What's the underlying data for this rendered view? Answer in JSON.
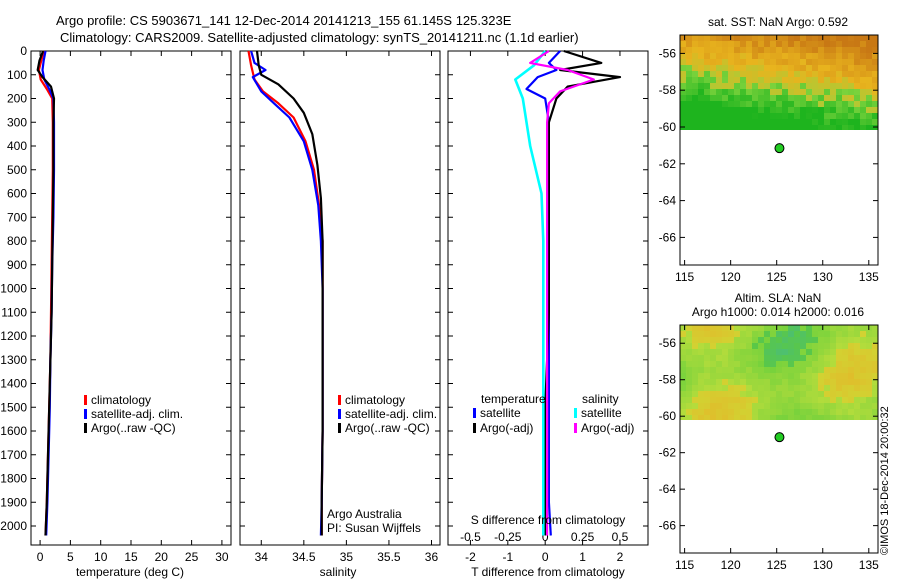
{
  "header": {
    "line1": "Argo profile: CS 5903671_141 12-Dec-2014 20141213_155 61.145S 125.323E",
    "line2": "Climatology: CARS2009. Satellite-adjusted climatology: synTS_20141211.nc (1.1d earlier)"
  },
  "colors": {
    "climatology": "#ff0000",
    "satellite": "#0000ff",
    "argo": "#000000",
    "sat_salinity": "#00ffff",
    "argo_salinity": "#ff00ff",
    "float_marker": "#22cc22"
  },
  "chart_data": [
    {
      "type": "line",
      "id": "temperature",
      "xlabel": "temperature (deg C)",
      "ylabel": "",
      "xlim": [
        -1.5,
        31.5
      ],
      "ylim": [
        2080,
        0
      ],
      "xticks": [
        0,
        5,
        10,
        15,
        20,
        25,
        30
      ],
      "xtick_labels": [
        "0",
        "5",
        "10",
        "15",
        "20",
        "25",
        "30"
      ],
      "yticks": [
        0,
        100,
        200,
        300,
        400,
        500,
        600,
        700,
        800,
        900,
        1000,
        1100,
        1200,
        1300,
        1400,
        1500,
        1600,
        1700,
        1800,
        1900,
        2000
      ],
      "ytick_labels": [
        "0",
        "100",
        "200",
        "300",
        "400",
        "500",
        "600",
        "700",
        "800",
        "900",
        "1000",
        "1100",
        "1200",
        "1300",
        "1400",
        "1500",
        "1600",
        "1700",
        "1800",
        "1900",
        "2000"
      ],
      "legend": [
        "climatology",
        "satellite-adj. clim.",
        "Argo(..raw -QC)"
      ],
      "series": [
        {
          "name": "climatology",
          "color_key": "climatology",
          "points": [
            [
              0.6,
              0
            ],
            [
              0.2,
              40
            ],
            [
              -0.2,
              80
            ],
            [
              0.1,
              120
            ],
            [
              1.1,
              160
            ],
            [
              2.0,
              200
            ],
            [
              2.1,
              300
            ],
            [
              2.1,
              500
            ],
            [
              2.0,
              700
            ],
            [
              1.9,
              900
            ],
            [
              1.8,
              1100
            ],
            [
              1.7,
              1300
            ],
            [
              1.5,
              1500
            ],
            [
              1.3,
              1700
            ],
            [
              1.1,
              1900
            ],
            [
              0.9,
              2040
            ]
          ]
        },
        {
          "name": "satellite-adj. clim.",
          "color_key": "satellite",
          "points": [
            [
              0.9,
              0
            ],
            [
              0.6,
              40
            ],
            [
              0.4,
              80
            ],
            [
              0.7,
              120
            ],
            [
              1.5,
              160
            ],
            [
              2.2,
              200
            ],
            [
              2.3,
              300
            ],
            [
              2.3,
              500
            ],
            [
              2.2,
              700
            ],
            [
              2.0,
              900
            ],
            [
              1.9,
              1100
            ],
            [
              1.7,
              1300
            ],
            [
              1.6,
              1500
            ],
            [
              1.4,
              1700
            ],
            [
              1.2,
              1900
            ],
            [
              1.0,
              2040
            ]
          ]
        },
        {
          "name": "Argo(..raw -QC)",
          "color_key": "argo",
          "points": [
            [
              0.5,
              0
            ],
            [
              -0.1,
              40
            ],
            [
              -0.4,
              80
            ],
            [
              0.4,
              110
            ],
            [
              1.8,
              150
            ],
            [
              2.3,
              200
            ],
            [
              2.2,
              300
            ],
            [
              2.2,
              500
            ],
            [
              2.1,
              700
            ],
            [
              2.0,
              900
            ],
            [
              1.9,
              1100
            ],
            [
              1.7,
              1300
            ],
            [
              1.5,
              1500
            ],
            [
              1.3,
              1700
            ],
            [
              1.1,
              1900
            ],
            [
              0.9,
              2040
            ]
          ]
        }
      ]
    },
    {
      "type": "line",
      "id": "salinity",
      "xlabel": "salinity",
      "xlim": [
        33.75,
        36.1
      ],
      "ylim": [
        2080,
        0
      ],
      "xticks": [
        34,
        34.5,
        35,
        35.5,
        36
      ],
      "xtick_labels": [
        "34",
        "34.5",
        "35",
        "35.5",
        "36"
      ],
      "legend": [
        "climatology",
        "satellite-adj. clim.",
        "Argo(..raw -QC)"
      ],
      "annotation": [
        "Argo Australia",
        "PI: Susan Wijffels"
      ],
      "series": [
        {
          "name": "climatology",
          "color_key": "climatology",
          "points": [
            [
              33.85,
              0
            ],
            [
              33.88,
              60
            ],
            [
              33.92,
              120
            ],
            [
              34.02,
              170
            ],
            [
              34.2,
              220
            ],
            [
              34.38,
              280
            ],
            [
              34.52,
              380
            ],
            [
              34.62,
              500
            ],
            [
              34.68,
              650
            ],
            [
              34.72,
              800
            ],
            [
              34.72,
              1000
            ],
            [
              34.72,
              1300
            ],
            [
              34.72,
              1600
            ],
            [
              34.71,
              1900
            ],
            [
              34.71,
              2040
            ]
          ]
        },
        {
          "name": "satellite-adj. clim.",
          "color_key": "satellite",
          "points": [
            [
              33.88,
              0
            ],
            [
              33.92,
              50
            ],
            [
              34.05,
              80
            ],
            [
              33.9,
              110
            ],
            [
              34.0,
              170
            ],
            [
              34.15,
              220
            ],
            [
              34.33,
              280
            ],
            [
              34.5,
              380
            ],
            [
              34.6,
              500
            ],
            [
              34.67,
              650
            ],
            [
              34.7,
              800
            ],
            [
              34.72,
              1000
            ],
            [
              34.72,
              1300
            ],
            [
              34.72,
              1600
            ],
            [
              34.71,
              1900
            ],
            [
              34.7,
              2040
            ]
          ]
        },
        {
          "name": "Argo(..raw -QC)",
          "color_key": "argo",
          "points": [
            [
              33.95,
              0
            ],
            [
              33.97,
              60
            ],
            [
              34.0,
              100
            ],
            [
              34.2,
              140
            ],
            [
              34.38,
              200
            ],
            [
              34.5,
              260
            ],
            [
              34.6,
              350
            ],
            [
              34.66,
              480
            ],
            [
              34.7,
              620
            ],
            [
              34.72,
              800
            ],
            [
              34.72,
              1000
            ],
            [
              34.72,
              1300
            ],
            [
              34.72,
              1600
            ],
            [
              34.71,
              1900
            ],
            [
              34.71,
              2040
            ]
          ]
        }
      ]
    },
    {
      "type": "line",
      "id": "difference",
      "xlabel": "T difference from climatology",
      "xlabel_top": "S difference from climatology",
      "xlim": [
        -2.6,
        2.75
      ],
      "ylim": [
        2080,
        0
      ],
      "xticks": [
        -2,
        -1,
        0,
        1,
        2
      ],
      "xtick_labels": [
        "-2",
        "-1",
        "0",
        "1",
        "2"
      ],
      "sticks": [
        -2,
        -1,
        0,
        1,
        2
      ],
      "stick_labels": [
        "-0.5",
        "-0.25",
        "0",
        "0.25",
        "0.5"
      ],
      "legend_groups": [
        {
          "title": "temperature",
          "entries": [
            "satellite",
            "Argo(-adj)"
          ]
        },
        {
          "title": "salinity",
          "entries": [
            "satellite",
            "Argo(-adj)"
          ]
        }
      ],
      "series": [
        {
          "name": "temperature satellite",
          "color_key": "satellite",
          "points": [
            [
              0.4,
              0
            ],
            [
              0.1,
              50
            ],
            [
              0.3,
              80
            ],
            [
              -0.2,
              110
            ],
            [
              -0.5,
              160
            ],
            [
              0.0,
              200
            ],
            [
              0.1,
              300
            ],
            [
              0.1,
              500
            ],
            [
              0.1,
              700
            ],
            [
              0.1,
              900
            ],
            [
              0.1,
              1100
            ],
            [
              0.1,
              1300
            ],
            [
              0.1,
              1500
            ],
            [
              0.1,
              1700
            ],
            [
              0.1,
              1900
            ],
            [
              0.15,
              2040
            ]
          ]
        },
        {
          "name": "temperature Argo(-adj)",
          "color_key": "argo",
          "points": [
            [
              0.5,
              0
            ],
            [
              1.5,
              50
            ],
            [
              0.4,
              80
            ],
            [
              2.0,
              110
            ],
            [
              0.6,
              150
            ],
            [
              0.3,
              200
            ],
            [
              0.1,
              300
            ],
            [
              0.1,
              500
            ],
            [
              0.1,
              700
            ],
            [
              0.1,
              900
            ],
            [
              0.1,
              1100
            ],
            [
              0.05,
              1300
            ],
            [
              0.0,
              1500
            ],
            [
              0.0,
              1700
            ],
            [
              0.0,
              1900
            ],
            [
              0.0,
              2040
            ]
          ]
        },
        {
          "name": "salinity satellite",
          "color_key": "sat_salinity",
          "points": [
            [
              0.0,
              0
            ],
            [
              -0.3,
              60
            ],
            [
              -0.8,
              120
            ],
            [
              -0.6,
              200
            ],
            [
              -0.4,
              400
            ],
            [
              -0.1,
              600
            ],
            [
              -0.05,
              800
            ],
            [
              -0.05,
              1000
            ],
            [
              -0.05,
              1200
            ],
            [
              -0.05,
              1400
            ],
            [
              -0.05,
              1600
            ],
            [
              -0.05,
              1800
            ],
            [
              -0.05,
              2040
            ]
          ]
        },
        {
          "name": "salinity Argo(-adj)",
          "color_key": "argo_salinity",
          "points": [
            [
              0.1,
              0
            ],
            [
              -0.4,
              50
            ],
            [
              0.6,
              80
            ],
            [
              1.3,
              120
            ],
            [
              0.4,
              170
            ],
            [
              0.1,
              220
            ],
            [
              0.05,
              300
            ],
            [
              0.05,
              500
            ],
            [
              0.05,
              700
            ],
            [
              0.05,
              900
            ],
            [
              0.05,
              1100
            ],
            [
              0.05,
              1300
            ],
            [
              0.05,
              1500
            ],
            [
              0.05,
              1700
            ],
            [
              0.05,
              1900
            ],
            [
              0.05,
              2040
            ]
          ]
        }
      ]
    },
    {
      "type": "heatmap",
      "id": "sst_map",
      "title": "sat. SST: NaN Argo: 0.592",
      "xlim": [
        114.5,
        136
      ],
      "ylim": [
        -67.5,
        -55
      ],
      "xticks": [
        115,
        120,
        125,
        130,
        135
      ],
      "yticks": [
        -56,
        -58,
        -60,
        -62,
        -64,
        -66
      ],
      "ytick_labels": [
        "-56",
        "-58",
        "-60",
        "-62",
        "-64",
        "-66"
      ],
      "data_lat_range": [
        -60.1,
        -55
      ],
      "marker": {
        "lon": 125.3,
        "lat": -61.15
      }
    },
    {
      "type": "heatmap",
      "id": "sla_map",
      "title": "Altim. SLA: NaN",
      "subtitle": "Argo h1000: 0.014 h2000: 0.016",
      "xlim": [
        114.5,
        136
      ],
      "ylim": [
        -67.5,
        -55
      ],
      "xticks": [
        115,
        120,
        125,
        130,
        135
      ],
      "yticks": [
        -56,
        -58,
        -60,
        -62,
        -64,
        -66
      ],
      "ytick_labels": [
        "-56",
        "-58",
        "-60",
        "-62",
        "-64",
        "-66"
      ],
      "data_lat_range": [
        -60.1,
        -55
      ],
      "marker": {
        "lon": 125.3,
        "lat": -61.15
      }
    }
  ],
  "credit": "©IMOS 18-Dec-2014 20:00:32"
}
